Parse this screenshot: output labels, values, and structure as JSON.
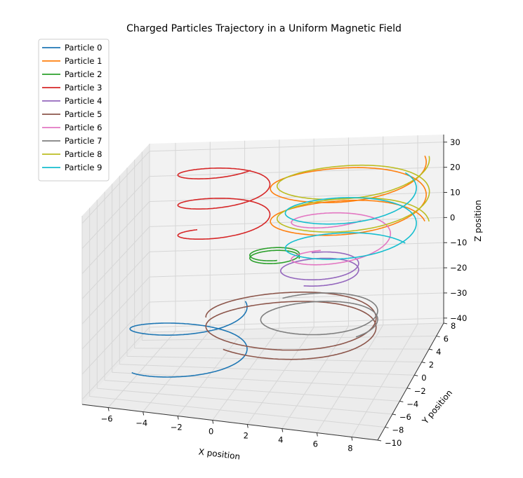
{
  "chart_data": {
    "type": "line",
    "projection": "3d",
    "title": "Charged Particles Trajectory in a Uniform Magnetic Field",
    "xlabel": "X position",
    "ylabel": "Y position",
    "zlabel": "Z position",
    "xlim": [
      -7.5,
      9.5
    ],
    "ylim": [
      -10,
      8
    ],
    "zlim": [
      -42,
      33
    ],
    "x_ticks": [
      -6,
      -4,
      -2,
      0,
      2,
      4,
      6,
      8
    ],
    "y_ticks": [
      -10,
      -8,
      -6,
      -4,
      -2,
      0,
      2,
      4,
      6,
      8
    ],
    "z_ticks": [
      -40,
      -30,
      -20,
      -10,
      0,
      10,
      20,
      30
    ],
    "grid": true,
    "legend_position": "top-left",
    "series": [
      {
        "name": "Particle 0",
        "color": "#1f77b4",
        "center_x": -3.2,
        "center_y": -1.5,
        "radius": 3.3,
        "z_start": -40,
        "z_end": -15,
        "turns": 1.5,
        "phase": 3.6
      },
      {
        "name": "Particle 1",
        "color": "#ff7f0e",
        "center_x": 4.8,
        "center_y": 4.2,
        "radius": 4.4,
        "z_start": 4,
        "z_end": 30,
        "turns": 2.0,
        "phase": 0.4
      },
      {
        "name": "Particle 2",
        "color": "#2ca02c",
        "center_x": 0.8,
        "center_y": 3.0,
        "radius": 1.4,
        "z_start": -4,
        "z_end": -2,
        "turns": 1.8,
        "phase": 0.0
      },
      {
        "name": "Particle 3",
        "color": "#d62728",
        "center_x": -2.6,
        "center_y": 5.2,
        "radius": 2.6,
        "z_start": 0,
        "z_end": 30,
        "turns": 2.5,
        "phase": 2.4
      },
      {
        "name": "Particle 4",
        "color": "#9467bd",
        "center_x": 3.4,
        "center_y": 3.0,
        "radius": 2.2,
        "z_start": -10,
        "z_end": -6,
        "turns": 1.6,
        "phase": 4.5
      },
      {
        "name": "Particle 5",
        "color": "#8c564b",
        "center_x": 2.6,
        "center_y": -1.0,
        "radius": 4.8,
        "z_start": -25,
        "z_end": -18,
        "turns": 1.9,
        "phase": 4.0
      },
      {
        "name": "Particle 6",
        "color": "#e377c2",
        "center_x": 4.2,
        "center_y": 5.0,
        "radius": 2.8,
        "z_start": -10,
        "z_end": 12,
        "turns": 1.5,
        "phase": 2.2
      },
      {
        "name": "Particle 7",
        "color": "#7f7f7f",
        "center_x": 3.8,
        "center_y": 1.0,
        "radius": 3.3,
        "z_start": -25,
        "z_end": -20,
        "turns": 1.5,
        "phase": 5.6
      },
      {
        "name": "Particle 8",
        "color": "#bcbd22",
        "center_x": 5.0,
        "center_y": 4.6,
        "radius": 4.3,
        "z_start": 4,
        "z_end": 30,
        "turns": 2.0,
        "phase": 0.3
      },
      {
        "name": "Particle 9",
        "color": "#17becf",
        "center_x": 5.2,
        "center_y": 3.0,
        "radius": 3.7,
        "z_start": -4,
        "z_end": 24,
        "turns": 2.0,
        "phase": 0.8
      }
    ]
  }
}
